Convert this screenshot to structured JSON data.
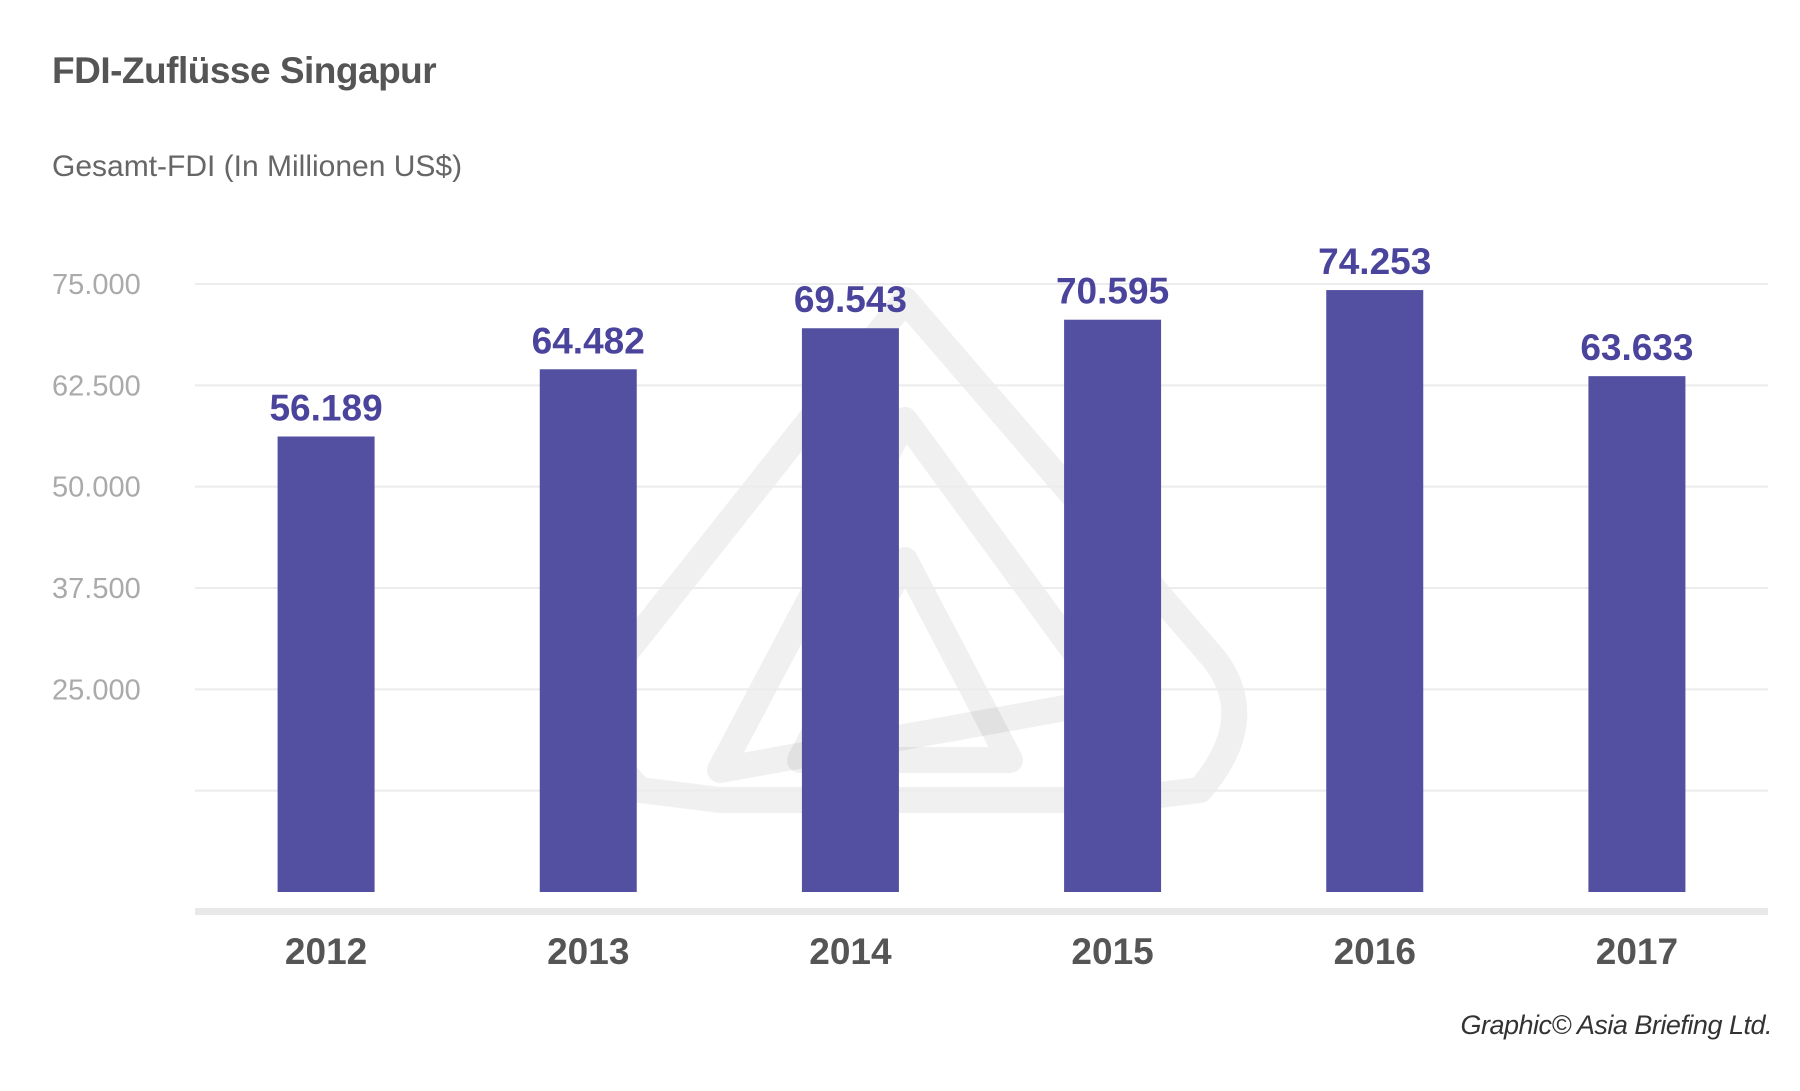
{
  "chart_data": {
    "type": "bar",
    "title": "FDI-Zuflüsse Singapur",
    "ylabel": "Gesamt-FDI (In Millionen US$)",
    "xlabel": "",
    "categories": [
      "2012",
      "2013",
      "2014",
      "2015",
      "2016",
      "2017"
    ],
    "values": [
      56189,
      64482,
      69543,
      70595,
      74253,
      63633
    ],
    "value_labels": [
      "56.189",
      "64.482",
      "69.543",
      "70.595",
      "74.253",
      "63.633"
    ],
    "ylim": [
      0,
      75000
    ],
    "yticks": [
      12500,
      25000,
      37500,
      50000,
      62500,
      75000
    ],
    "ytick_labels": [
      "",
      "25.000",
      "37.500",
      "50.000",
      "62.500",
      "75.000"
    ],
    "grid": true,
    "bar_color": "#5450a1",
    "label_color": "#4b449c"
  },
  "credit": "Graphic© Asia Briefing Ltd."
}
